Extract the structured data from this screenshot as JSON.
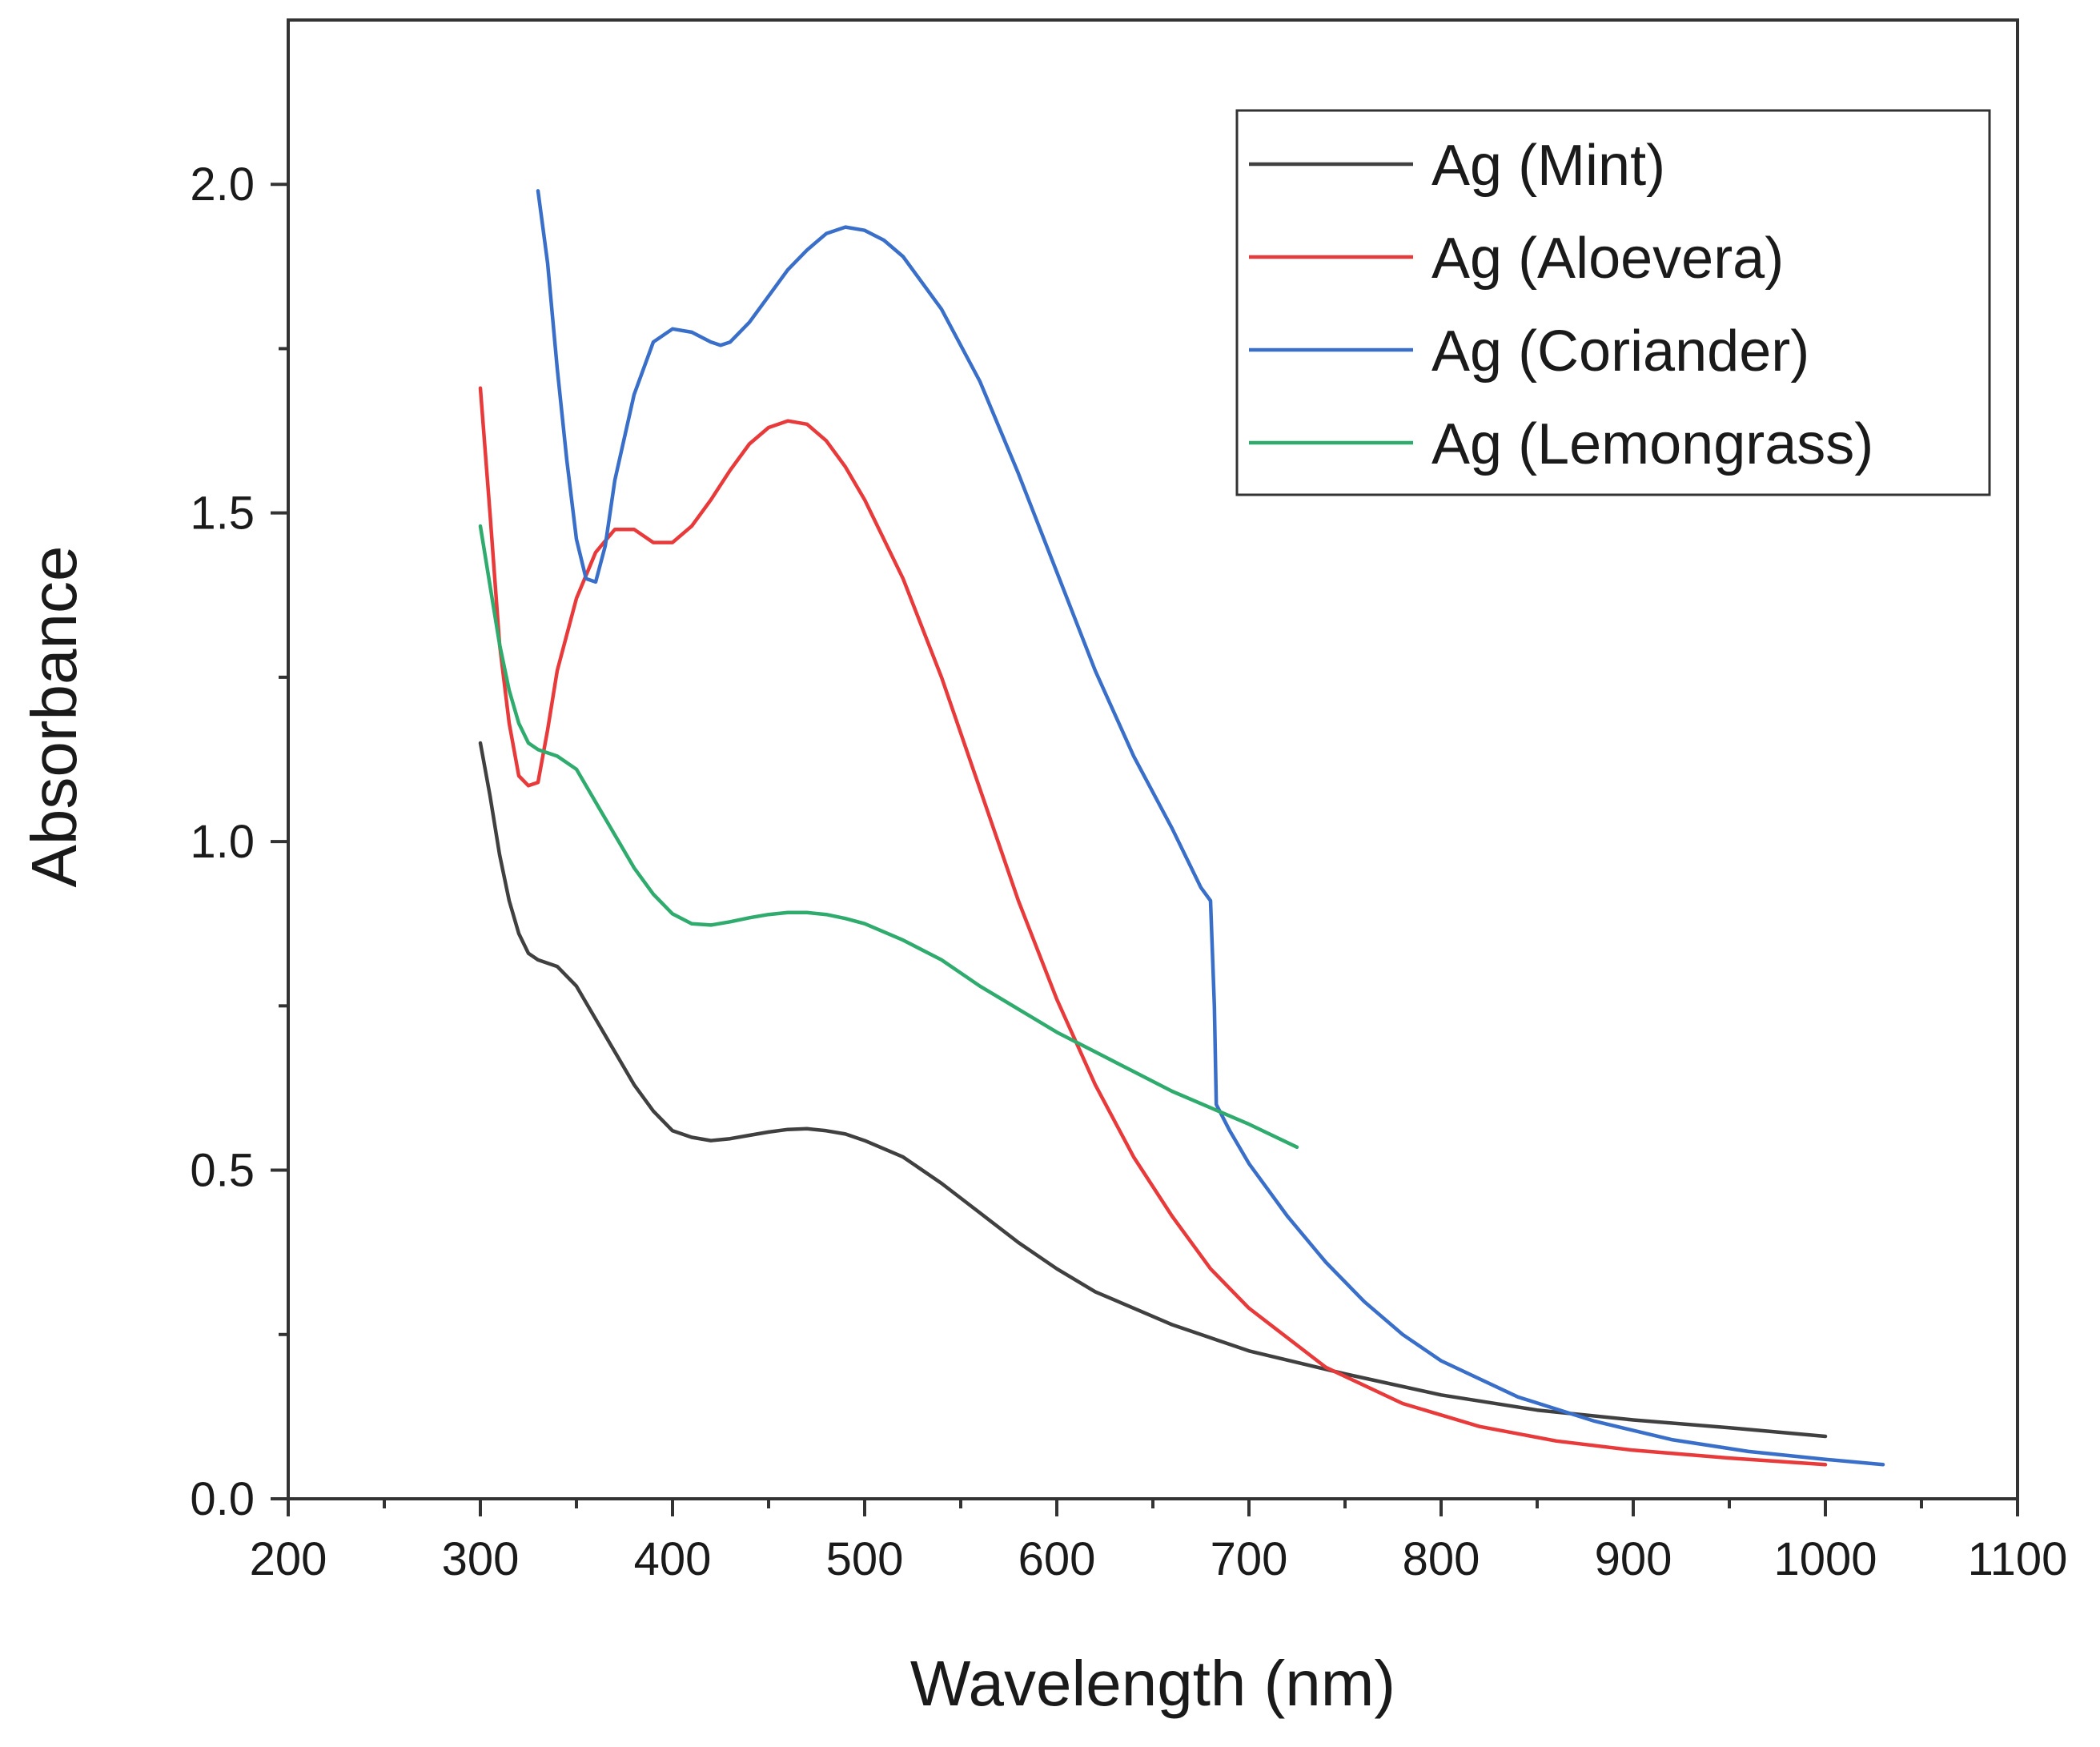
{
  "chart_data": {
    "type": "line",
    "title": "",
    "xlabel": "Wavelength (nm)",
    "ylabel": "Absorbance",
    "xlim": [
      200,
      1100
    ],
    "ylim": [
      0,
      2.25
    ],
    "x_ticks": [
      200,
      300,
      400,
      500,
      600,
      700,
      800,
      900,
      1000,
      1100
    ],
    "x_tick_labels": [
      "200",
      "300",
      "400",
      "500",
      "600",
      "700",
      "800",
      "900",
      "1000",
      "1100"
    ],
    "x_minor_ticks": [
      250,
      350,
      450,
      550,
      650,
      750,
      850,
      950,
      1050
    ],
    "y_ticks": [
      0.0,
      0.5,
      1.0,
      1.5,
      2.0
    ],
    "y_tick_labels": [
      "0.0",
      "0.5",
      "1.0",
      "1.5",
      "2.0"
    ],
    "y_minor_ticks": [
      0.25,
      0.75,
      1.25,
      1.75
    ],
    "grid": false,
    "legend_position": "top-right",
    "series": [
      {
        "name": "Ag (Mint)",
        "color": "#404040",
        "points": [
          [
            300,
            1.15
          ],
          [
            305,
            1.07
          ],
          [
            310,
            0.98
          ],
          [
            315,
            0.91
          ],
          [
            320,
            0.86
          ],
          [
            325,
            0.83
          ],
          [
            330,
            0.82
          ],
          [
            340,
            0.81
          ],
          [
            350,
            0.78
          ],
          [
            360,
            0.73
          ],
          [
            370,
            0.68
          ],
          [
            380,
            0.63
          ],
          [
            390,
            0.59
          ],
          [
            400,
            0.56
          ],
          [
            410,
            0.55
          ],
          [
            420,
            0.545
          ],
          [
            430,
            0.548
          ],
          [
            440,
            0.553
          ],
          [
            450,
            0.558
          ],
          [
            460,
            0.562
          ],
          [
            470,
            0.563
          ],
          [
            480,
            0.56
          ],
          [
            490,
            0.555
          ],
          [
            500,
            0.545
          ],
          [
            520,
            0.52
          ],
          [
            540,
            0.48
          ],
          [
            560,
            0.435
          ],
          [
            580,
            0.39
          ],
          [
            600,
            0.35
          ],
          [
            620,
            0.315
          ],
          [
            640,
            0.29
          ],
          [
            660,
            0.265
          ],
          [
            680,
            0.245
          ],
          [
            700,
            0.225
          ],
          [
            750,
            0.19
          ],
          [
            800,
            0.158
          ],
          [
            850,
            0.135
          ],
          [
            900,
            0.12
          ],
          [
            950,
            0.108
          ],
          [
            1000,
            0.095
          ]
        ]
      },
      {
        "name": "Ag (Aloevera)",
        "color": "#e83a3a",
        "points": [
          [
            300,
            1.69
          ],
          [
            305,
            1.5
          ],
          [
            310,
            1.3
          ],
          [
            315,
            1.18
          ],
          [
            320,
            1.1
          ],
          [
            325,
            1.085
          ],
          [
            330,
            1.09
          ],
          [
            335,
            1.17
          ],
          [
            340,
            1.26
          ],
          [
            350,
            1.37
          ],
          [
            360,
            1.44
          ],
          [
            370,
            1.475
          ],
          [
            380,
            1.475
          ],
          [
            390,
            1.455
          ],
          [
            400,
            1.455
          ],
          [
            410,
            1.48
          ],
          [
            420,
            1.52
          ],
          [
            430,
            1.565
          ],
          [
            440,
            1.605
          ],
          [
            450,
            1.63
          ],
          [
            460,
            1.64
          ],
          [
            470,
            1.635
          ],
          [
            480,
            1.61
          ],
          [
            490,
            1.57
          ],
          [
            500,
            1.52
          ],
          [
            520,
            1.4
          ],
          [
            540,
            1.25
          ],
          [
            560,
            1.08
          ],
          [
            580,
            0.91
          ],
          [
            600,
            0.76
          ],
          [
            620,
            0.63
          ],
          [
            640,
            0.52
          ],
          [
            660,
            0.43
          ],
          [
            680,
            0.35
          ],
          [
            700,
            0.29
          ],
          [
            740,
            0.2
          ],
          [
            780,
            0.145
          ],
          [
            820,
            0.11
          ],
          [
            860,
            0.088
          ],
          [
            900,
            0.074
          ],
          [
            950,
            0.062
          ],
          [
            1000,
            0.052
          ]
        ]
      },
      {
        "name": "Ag (Coriander)",
        "color": "#3a6fc9",
        "points": [
          [
            330,
            1.99
          ],
          [
            335,
            1.88
          ],
          [
            340,
            1.72
          ],
          [
            345,
            1.58
          ],
          [
            350,
            1.46
          ],
          [
            355,
            1.4
          ],
          [
            360,
            1.395
          ],
          [
            365,
            1.45
          ],
          [
            370,
            1.55
          ],
          [
            380,
            1.68
          ],
          [
            390,
            1.76
          ],
          [
            400,
            1.78
          ],
          [
            410,
            1.775
          ],
          [
            420,
            1.76
          ],
          [
            425,
            1.755
          ],
          [
            430,
            1.76
          ],
          [
            440,
            1.79
          ],
          [
            450,
            1.83
          ],
          [
            460,
            1.87
          ],
          [
            470,
            1.9
          ],
          [
            480,
            1.925
          ],
          [
            490,
            1.935
          ],
          [
            500,
            1.93
          ],
          [
            510,
            1.915
          ],
          [
            520,
            1.89
          ],
          [
            540,
            1.81
          ],
          [
            560,
            1.7
          ],
          [
            580,
            1.56
          ],
          [
            600,
            1.41
          ],
          [
            620,
            1.26
          ],
          [
            640,
            1.13
          ],
          [
            660,
            1.02
          ],
          [
            675,
            0.93
          ],
          [
            680,
            0.91
          ],
          [
            682,
            0.75
          ],
          [
            683,
            0.6
          ],
          [
            690,
            0.56
          ],
          [
            700,
            0.51
          ],
          [
            720,
            0.43
          ],
          [
            740,
            0.36
          ],
          [
            760,
            0.3
          ],
          [
            780,
            0.25
          ],
          [
            800,
            0.21
          ],
          [
            840,
            0.155
          ],
          [
            880,
            0.118
          ],
          [
            920,
            0.09
          ],
          [
            960,
            0.072
          ],
          [
            1000,
            0.06
          ],
          [
            1030,
            0.052
          ]
        ]
      },
      {
        "name": "Ag (Lemongrass)",
        "color": "#2fab6e",
        "points": [
          [
            300,
            1.48
          ],
          [
            305,
            1.39
          ],
          [
            310,
            1.3
          ],
          [
            315,
            1.23
          ],
          [
            320,
            1.18
          ],
          [
            325,
            1.15
          ],
          [
            330,
            1.14
          ],
          [
            340,
            1.13
          ],
          [
            350,
            1.11
          ],
          [
            360,
            1.06
          ],
          [
            370,
            1.01
          ],
          [
            380,
            0.96
          ],
          [
            390,
            0.92
          ],
          [
            400,
            0.89
          ],
          [
            410,
            0.875
          ],
          [
            420,
            0.873
          ],
          [
            430,
            0.878
          ],
          [
            440,
            0.884
          ],
          [
            450,
            0.889
          ],
          [
            460,
            0.892
          ],
          [
            470,
            0.892
          ],
          [
            480,
            0.889
          ],
          [
            490,
            0.883
          ],
          [
            500,
            0.875
          ],
          [
            520,
            0.85
          ],
          [
            540,
            0.82
          ],
          [
            560,
            0.78
          ],
          [
            580,
            0.745
          ],
          [
            600,
            0.71
          ],
          [
            620,
            0.68
          ],
          [
            640,
            0.65
          ],
          [
            660,
            0.62
          ],
          [
            680,
            0.595
          ],
          [
            700,
            0.57
          ],
          [
            725,
            0.535
          ]
        ]
      }
    ]
  }
}
